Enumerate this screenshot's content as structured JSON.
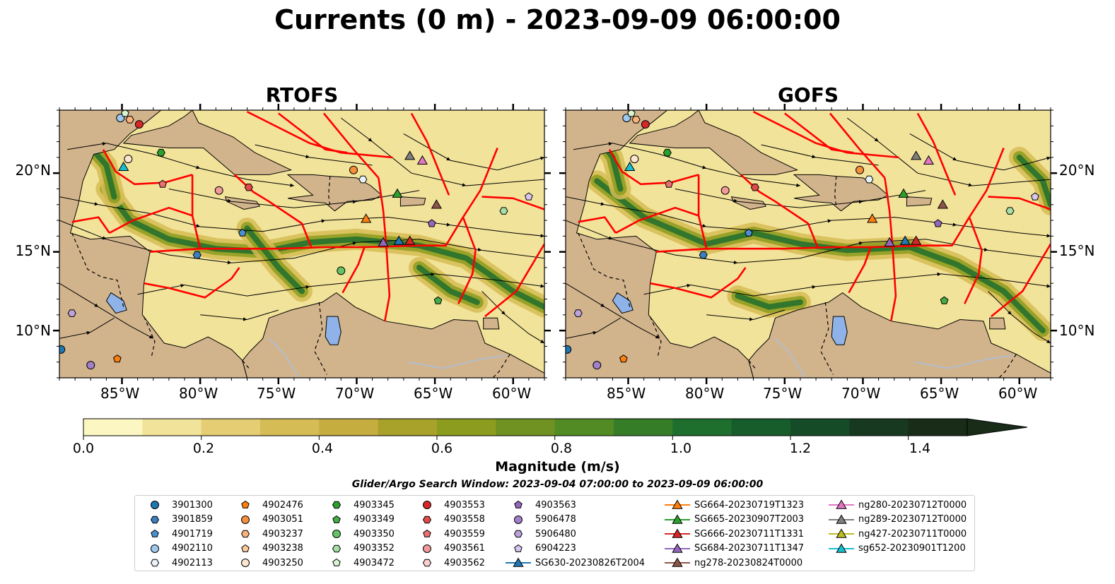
{
  "title": "Currents (0 m) - 2023-09-09 06:00:00",
  "panels": [
    {
      "title": "RTOFS"
    },
    {
      "title": "GOFS"
    }
  ],
  "axes": {
    "lat_labels": [
      "20°N",
      "15°N",
      "10°N"
    ],
    "lon_labels": [
      "85°W",
      "80°W",
      "75°W",
      "70°W",
      "65°W",
      "60°W"
    ],
    "lat_range": [
      7,
      24
    ],
    "lon_range": [
      -89,
      -58
    ]
  },
  "colorbar": {
    "label": "Magnitude (m/s)",
    "tick_labels": [
      "0.0",
      "0.2",
      "0.4",
      "0.6",
      "0.8",
      "1.0",
      "1.2",
      "1.4"
    ],
    "range": [
      0,
      1.5
    ],
    "extend": "max",
    "colors": [
      "#fcf7c2",
      "#f2e39a",
      "#e4cd72",
      "#d6bc55",
      "#c5ad3f",
      "#a8a12a",
      "#8c9c1e",
      "#6f9222",
      "#528a24",
      "#367d27",
      "#1e6e2d",
      "#175d2b",
      "#154b26",
      "#17391f",
      "#182c18"
    ]
  },
  "map_colors": {
    "land": "#d2b48c",
    "lake": "#8fb3e8",
    "eez_lines": "#ff0000",
    "streamlines": "#000000"
  },
  "search_window": "Glider/Argo Search Window: 2023-09-04 07:00:00 to 2023-09-09 06:00:00",
  "legend": [
    {
      "label": "3901300",
      "marker": "circle",
      "color": "#1f77b4"
    },
    {
      "label": "3901859",
      "marker": "hexagon",
      "color": "#3b7fc0"
    },
    {
      "label": "4901719",
      "marker": "pentagon",
      "color": "#4a8fd0"
    },
    {
      "label": "4902110",
      "marker": "circle",
      "color": "#9ec9ef"
    },
    {
      "label": "4902113",
      "marker": "hexagon",
      "color": "#eaf3fb"
    },
    {
      "label": "4902476",
      "marker": "pentagon",
      "color": "#ff7f0e"
    },
    {
      "label": "4903051",
      "marker": "circle",
      "color": "#f68f3a"
    },
    {
      "label": "4903237",
      "marker": "hexagon",
      "color": "#f9b27a"
    },
    {
      "label": "4903238",
      "marker": "pentagon",
      "color": "#fbcb9c"
    },
    {
      "label": "4903250",
      "marker": "circle",
      "color": "#fde6cf"
    },
    {
      "label": "4903345",
      "marker": "hexagon",
      "color": "#2ca02c"
    },
    {
      "label": "4903349",
      "marker": "pentagon",
      "color": "#45ad45"
    },
    {
      "label": "4903350",
      "marker": "circle",
      "color": "#66c266"
    },
    {
      "label": "4903352",
      "marker": "hexagon",
      "color": "#a6dfa6"
    },
    {
      "label": "4903472",
      "marker": "pentagon",
      "color": "#d8f5d0"
    },
    {
      "label": "4903553",
      "marker": "circle",
      "color": "#d62728"
    },
    {
      "label": "4903558",
      "marker": "hexagon",
      "color": "#e04a4a"
    },
    {
      "label": "4903559",
      "marker": "pentagon",
      "color": "#ea6f6f"
    },
    {
      "label": "4903561",
      "marker": "circle",
      "color": "#f29a9a"
    },
    {
      "label": "4903562",
      "marker": "hexagon",
      "color": "#fad0d0"
    },
    {
      "label": "4903563",
      "marker": "pentagon",
      "color": "#9467bd"
    },
    {
      "label": "5906478",
      "marker": "circle",
      "color": "#a27fc8"
    },
    {
      "label": "5906480",
      "marker": "hexagon",
      "color": "#bda2dc"
    },
    {
      "label": "6904223",
      "marker": "pentagon",
      "color": "#d7c6ee"
    },
    {
      "label": "SG630-20230826T2004",
      "marker": "triangle",
      "color": "#1f77b4",
      "line": true
    },
    {
      "label": "SG664-20230719T1323",
      "marker": "triangle",
      "color": "#ff7f0e",
      "line": true
    },
    {
      "label": "SG665-20230907T2003",
      "marker": "triangle",
      "color": "#2ca02c",
      "line": true
    },
    {
      "label": "SG666-20230711T1331",
      "marker": "triangle",
      "color": "#d62728",
      "line": true
    },
    {
      "label": "SG684-20230711T1347",
      "marker": "triangle",
      "color": "#9467bd",
      "line": true
    },
    {
      "label": "ng278-20230824T0000",
      "marker": "triangle",
      "color": "#8c564b",
      "line": true
    },
    {
      "label": "ng280-20230712T0000",
      "marker": "triangle",
      "color": "#e377c2",
      "line": true
    },
    {
      "label": "ng289-20230712T0000",
      "marker": "triangle",
      "color": "#7f7f7f",
      "line": true
    },
    {
      "label": "ng427-20230711T0000",
      "marker": "triangle",
      "color": "#bcbd22",
      "line": true
    },
    {
      "label": "sg652-20230901T1200",
      "marker": "triangle",
      "color": "#17becf",
      "line": true
    }
  ],
  "markers_on_map": [
    {
      "id": "3901300",
      "lon": -88.9,
      "lat": 8.8
    },
    {
      "id": "4901719",
      "lon": -77.3,
      "lat": 16.2
    },
    {
      "id": "3901859",
      "lon": -80.2,
      "lat": 14.8
    },
    {
      "id": "4902110",
      "lon": -85.1,
      "lat": 23.5
    },
    {
      "id": "4902113",
      "lon": -69.6,
      "lat": 19.6
    },
    {
      "id": "4902476",
      "lon": -85.3,
      "lat": 8.2
    },
    {
      "id": "4903051",
      "lon": -70.2,
      "lat": 20.2
    },
    {
      "id": "4903237",
      "lon": -84.5,
      "lat": 23.4
    },
    {
      "id": "4903250",
      "lon": -84.6,
      "lat": 20.9
    },
    {
      "id": "4903349",
      "lon": -64.8,
      "lat": 11.9
    },
    {
      "id": "4903350",
      "lon": -71.0,
      "lat": 13.8
    },
    {
      "id": "4903352",
      "lon": -60.6,
      "lat": 17.6
    },
    {
      "id": "4903472",
      "lon": -84.8,
      "lat": 23.8
    },
    {
      "id": "4903553",
      "lon": -83.9,
      "lat": 23.1
    },
    {
      "id": "4903558",
      "lon": -76.9,
      "lat": 19.1
    },
    {
      "id": "4903559",
      "lon": -82.4,
      "lat": 19.3
    },
    {
      "id": "4903561",
      "lon": -78.8,
      "lat": 18.9
    },
    {
      "id": "4903563",
      "lon": -65.2,
      "lat": 16.8
    },
    {
      "id": "5906478",
      "lon": -87.0,
      "lat": 7.8
    },
    {
      "id": "5906480",
      "lon": -88.2,
      "lat": 11.1
    },
    {
      "id": "6904223",
      "lon": -59.0,
      "lat": 18.5
    },
    {
      "id": "4903345",
      "lon": -82.5,
      "lat": 21.3
    },
    {
      "id": "SG630-20230826T2004",
      "lon": -67.3,
      "lat": 15.7
    },
    {
      "id": "SG664-20230719T1323",
      "lon": -69.4,
      "lat": 17.1
    },
    {
      "id": "SG665-20230907T2003",
      "lon": -67.4,
      "lat": 18.7
    },
    {
      "id": "SG666-20230711T1331",
      "lon": -66.6,
      "lat": 15.7
    },
    {
      "id": "SG684-20230711T1347",
      "lon": -68.3,
      "lat": 15.6
    },
    {
      "id": "ng278-20230824T0000",
      "lon": -64.9,
      "lat": 18.0
    },
    {
      "id": "ng280-20230712T0000",
      "lon": -65.8,
      "lat": 20.8
    },
    {
      "id": "ng289-20230712T0000",
      "lon": -66.6,
      "lat": 21.1
    },
    {
      "id": "sg652-20230901T1200",
      "lon": -84.9,
      "lat": 20.4
    }
  ]
}
